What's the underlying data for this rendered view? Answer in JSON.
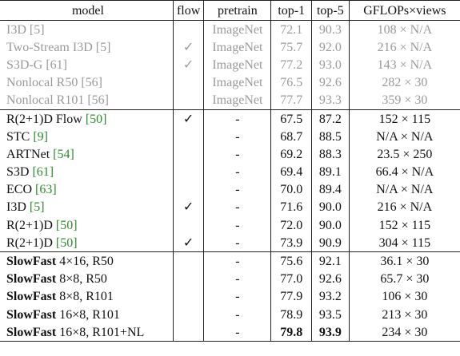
{
  "table": {
    "header": [
      "model",
      "flow",
      "pretrain",
      "top-1",
      "top-5",
      "GFLOPs×views"
    ],
    "groups": [
      {
        "style": "gray",
        "rows": [
          {
            "model": "I3D",
            "ref": "[5]",
            "pretrain": "ImageNet",
            "top1": "72.1",
            "top5": "90.3",
            "gflops": "108 × N/A"
          },
          {
            "model": "Two-Stream I3D",
            "ref": "[5]",
            "flow": "✓",
            "pretrain": "ImageNet",
            "top1": "75.7",
            "top5": "92.0",
            "gflops": "216 × N/A"
          },
          {
            "model": "S3D-G",
            "ref": "[61]",
            "flow": "✓",
            "pretrain": "ImageNet",
            "top1": "77.2",
            "top5": "93.0",
            "gflops": "143 × N/A"
          },
          {
            "model": "Nonlocal R50",
            "ref": "[56]",
            "pretrain": "ImageNet",
            "top1": "76.5",
            "top5": "92.6",
            "gflops": "282 × 30"
          },
          {
            "model": "Nonlocal R101",
            "ref": "[56]",
            "pretrain": "ImageNet",
            "top1": "77.7",
            "top5": "93.3",
            "gflops": "359 × 30"
          }
        ]
      },
      {
        "style": "normal",
        "rows": [
          {
            "model": "R(2+1)D Flow",
            "ref": "[50]",
            "flow": "✓",
            "pretrain": "-",
            "top1": "67.5",
            "top5": "87.2",
            "gflops": "152 × 115"
          },
          {
            "model": "STC",
            "ref": "[9]",
            "pretrain": "-",
            "top1": "68.7",
            "top5": "88.5",
            "gflops": "N/A × N/A"
          },
          {
            "model": "ARTNet",
            "ref": "[54]",
            "pretrain": "-",
            "top1": "69.2",
            "top5": "88.3",
            "gflops": "23.5 × 250"
          },
          {
            "model": "S3D",
            "ref": "[61]",
            "pretrain": "-",
            "top1": "69.4",
            "top5": "89.1",
            "gflops": "66.4 × N/A"
          },
          {
            "model": "ECO",
            "ref": "[63]",
            "pretrain": "-",
            "top1": "70.0",
            "top5": "89.4",
            "gflops": "N/A × N/A"
          },
          {
            "model": "I3D",
            "ref": "[5]",
            "flow": "✓",
            "pretrain": "-",
            "top1": "71.6",
            "top5": "90.0",
            "gflops": "216 × N/A"
          },
          {
            "model": "R(2+1)D",
            "ref": "[50]",
            "pretrain": "-",
            "top1": "72.0",
            "top5": "90.0",
            "gflops": "152 × 115"
          },
          {
            "model": "R(2+1)D",
            "ref": "[50]",
            "flow": "✓",
            "pretrain": "-",
            "top1": "73.9",
            "top5": "90.9",
            "gflops": "304 × 115"
          }
        ]
      },
      {
        "style": "normal",
        "rows": [
          {
            "model": "SlowFast",
            "variant": "4×16, R50",
            "pretrain": "-",
            "top1": "75.6",
            "top5": "92.1",
            "gflops": "36.1 × 30"
          },
          {
            "model": "SlowFast",
            "variant": "8×8, R50",
            "pretrain": "-",
            "top1": "77.0",
            "top5": "92.6",
            "gflops": "65.7 × 30"
          },
          {
            "model": "SlowFast",
            "variant": "8×8, R101",
            "pretrain": "-",
            "top1": "77.9",
            "top5": "93.2",
            "gflops": "106 × 30"
          },
          {
            "model": "SlowFast",
            "variant": "16×8, R101",
            "pretrain": "-",
            "top1": "78.9",
            "top5": "93.5",
            "gflops": "213 × 30"
          },
          {
            "model": "SlowFast",
            "variant": "16×8, R101+NL",
            "pretrain": "-",
            "top1": "79.8",
            "top5": "93.9",
            "gflops": "234 × 30",
            "best": true
          }
        ]
      }
    ]
  }
}
